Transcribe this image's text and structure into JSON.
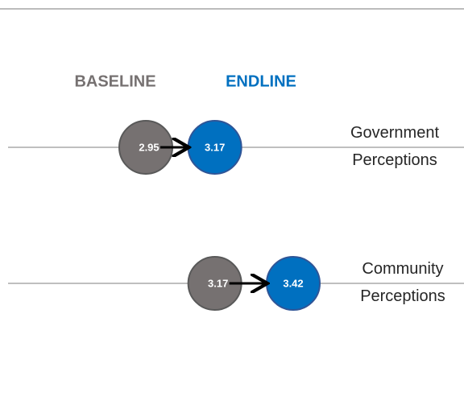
{
  "chart_data": {
    "type": "dumbbell",
    "categories": [
      "Government Perceptions",
      "Community Perceptions"
    ],
    "series": [
      {
        "name": "BASELINE",
        "color": "#767171",
        "values": [
          2.95,
          3.17
        ]
      },
      {
        "name": "ENDLINE",
        "color": "#0070c0",
        "values": [
          3.17,
          3.42
        ]
      }
    ]
  }
}
